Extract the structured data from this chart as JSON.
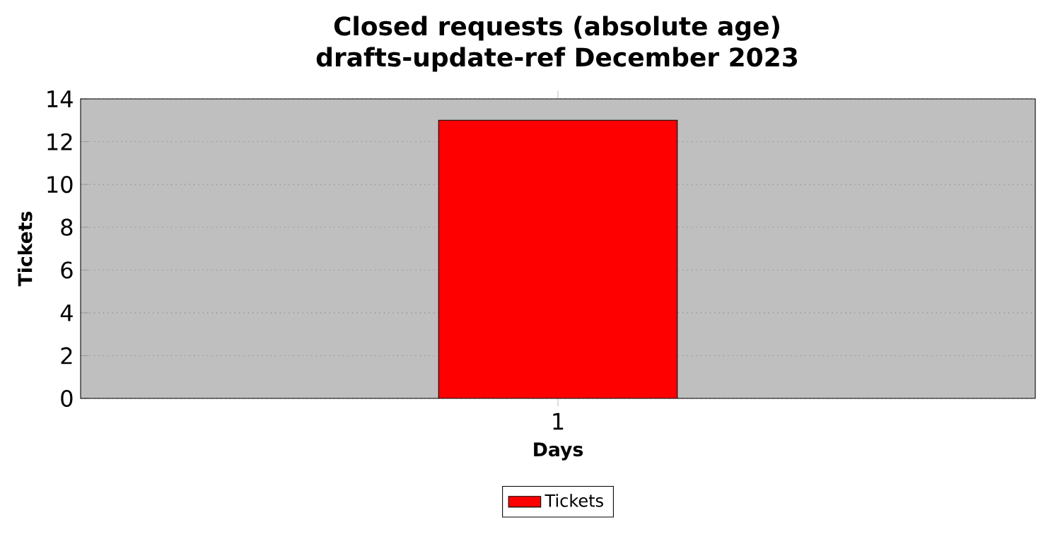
{
  "chart_data": {
    "type": "bar",
    "title": "Closed requests (absolute age)",
    "subtitle": "drafts-update-ref December 2023",
    "xlabel": "Days",
    "ylabel": "Tickets",
    "categories": [
      "1"
    ],
    "series": [
      {
        "name": "Tickets",
        "color": "#ff0000",
        "values": [
          13
        ]
      }
    ],
    "ylim": [
      0,
      14
    ],
    "yticks": [
      0,
      2,
      4,
      6,
      8,
      10,
      12,
      14
    ],
    "grid": "y",
    "legend": "bottom"
  }
}
